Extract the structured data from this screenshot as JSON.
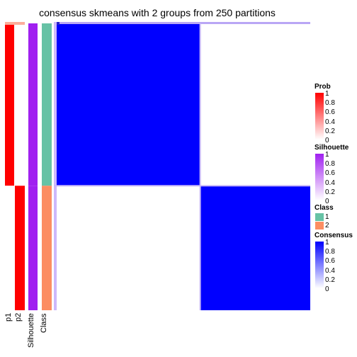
{
  "title": "consensus skmeans with 2 groups from 250 partitions",
  "annotation_labels": [
    "p1",
    "p2",
    "Silhouette",
    "Class"
  ],
  "legends": {
    "prob": {
      "title": "Prob",
      "ticks": [
        "1",
        "0.8",
        "0.6",
        "0.4",
        "0.2",
        "0"
      ],
      "color_high": "#ff0000",
      "color_low": "#ffffff"
    },
    "silhouette": {
      "title": "Silhouette",
      "ticks": [
        "1",
        "0.8",
        "0.6",
        "0.4",
        "0.2",
        "0"
      ],
      "color_high": "#a020f0",
      "color_low": "#ffffff"
    },
    "class": {
      "title": "Class",
      "items": [
        {
          "label": "1",
          "color": "#66c2a5"
        },
        {
          "label": "2",
          "color": "#fc8d62"
        }
      ]
    },
    "consensus": {
      "title": "Consensus",
      "ticks": [
        "1",
        "0.8",
        "0.6",
        "0.4",
        "0.2",
        "0"
      ],
      "color_high": "#0000ff",
      "color_low": "#ffffff"
    }
  },
  "chart_data": {
    "type": "heatmap",
    "title": "consensus skmeans with 2 groups from 250 partitions",
    "groups": [
      {
        "class": "1",
        "fraction": 0.566,
        "p1": 1.0,
        "p2": 0.0,
        "silhouette": 1.0
      },
      {
        "class": "2",
        "fraction": 0.434,
        "p1": 0.0,
        "p2": 1.0,
        "silhouette": 1.0
      }
    ],
    "consensus_matrix": [
      [
        1,
        0
      ],
      [
        0,
        1
      ]
    ],
    "color_scale": {
      "min": 0,
      "max": 1
    }
  }
}
